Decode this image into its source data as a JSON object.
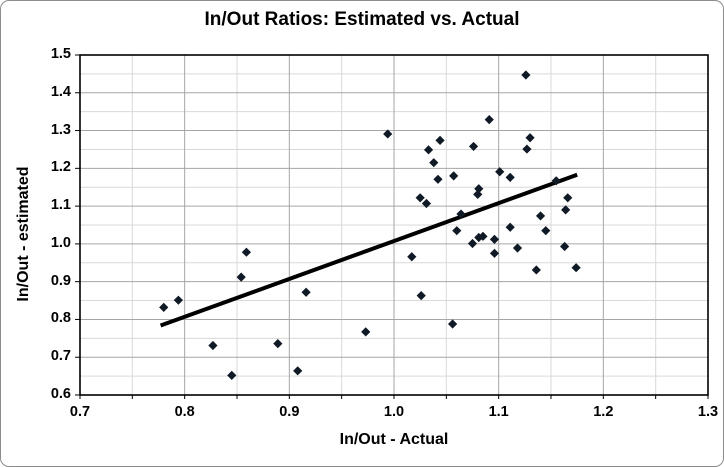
{
  "chart_data": {
    "type": "scatter",
    "title": "In/Out Ratios: Estimated vs. Actual",
    "xlabel": "In/Out - Actual",
    "ylabel": "In/Out - estimated",
    "xlim": [
      0.7,
      1.3
    ],
    "ylim": [
      0.6,
      1.5
    ],
    "x_ticks": [
      0.7,
      0.8,
      0.9,
      1.0,
      1.1,
      1.2,
      1.3
    ],
    "y_ticks": [
      0.6,
      0.7,
      0.8,
      0.9,
      1.0,
      1.1,
      1.2,
      1.3,
      1.4,
      1.5
    ],
    "x_minor_step": 0.05,
    "y_minor_step": 0.05,
    "grid": true,
    "legend": false,
    "marker_shape": "diamond",
    "marker_color": "#101a26",
    "trendline_color": "#000000",
    "minor_grid_color": "#d9d9d9",
    "major_grid_color": "#a6a6a6",
    "axis_color": "#000000",
    "trendline": {
      "x1": 0.777,
      "y1": 0.784,
      "x2": 1.175,
      "y2": 1.183
    },
    "points": [
      [
        0.78,
        0.832
      ],
      [
        0.794,
        0.851
      ],
      [
        0.827,
        0.731
      ],
      [
        0.845,
        0.652
      ],
      [
        0.854,
        0.912
      ],
      [
        0.859,
        0.978
      ],
      [
        0.889,
        0.736
      ],
      [
        0.908,
        0.664
      ],
      [
        0.916,
        0.872
      ],
      [
        0.973,
        0.767
      ],
      [
        0.994,
        1.291
      ],
      [
        1.017,
        0.966
      ],
      [
        1.025,
        1.122
      ],
      [
        1.031,
        1.107
      ],
      [
        1.026,
        0.863
      ],
      [
        1.033,
        1.249
      ],
      [
        1.038,
        1.215
      ],
      [
        1.042,
        1.171
      ],
      [
        1.044,
        1.274
      ],
      [
        1.057,
        1.18
      ],
      [
        1.056,
        0.788
      ],
      [
        1.06,
        1.035
      ],
      [
        1.064,
        1.079
      ],
      [
        1.076,
        1.258
      ],
      [
        1.075,
        1.001
      ],
      [
        1.081,
        1.146
      ],
      [
        1.08,
        1.131
      ],
      [
        1.081,
        1.017
      ],
      [
        1.085,
        1.02
      ],
      [
        1.091,
        1.329
      ],
      [
        1.096,
        1.012
      ],
      [
        1.096,
        0.975
      ],
      [
        1.101,
        1.191
      ],
      [
        1.111,
        1.176
      ],
      [
        1.111,
        1.044
      ],
      [
        1.118,
        0.989
      ],
      [
        1.126,
        1.447
      ],
      [
        1.13,
        1.281
      ],
      [
        1.127,
        1.251
      ],
      [
        1.136,
        0.931
      ],
      [
        1.14,
        1.074
      ],
      [
        1.145,
        1.035
      ],
      [
        1.155,
        1.167
      ],
      [
        1.166,
        1.122
      ],
      [
        1.164,
        1.09
      ],
      [
        1.163,
        0.993
      ],
      [
        1.174,
        0.937
      ]
    ]
  }
}
